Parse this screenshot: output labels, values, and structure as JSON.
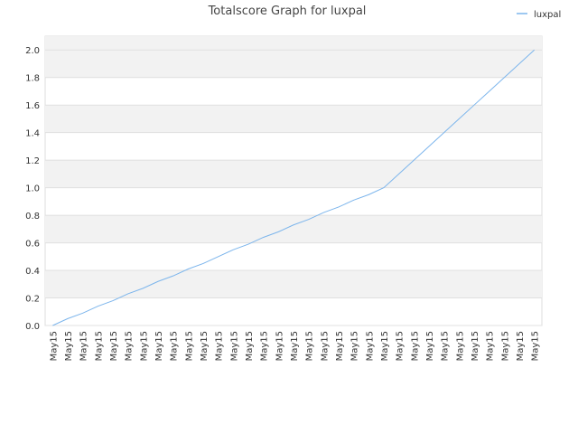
{
  "chart_data": {
    "type": "line",
    "title": "Totalscore Graph for luxpal",
    "categories": [
      "May15",
      "May15",
      "May15",
      "May15",
      "May15",
      "May15",
      "May15",
      "May15",
      "May15",
      "May15",
      "May15",
      "May15",
      "May15",
      "May15",
      "May15",
      "May15",
      "May15",
      "May15",
      "May15",
      "May15",
      "May15",
      "May15",
      "May15",
      "May15",
      "May15",
      "May15",
      "May15",
      "May15",
      "May15",
      "May15",
      "May15",
      "May15",
      "May15"
    ],
    "series": [
      {
        "name": "luxpal",
        "color": "#7cb5ec",
        "values": [
          0,
          0.05,
          0.09,
          0.14,
          0.18,
          0.23,
          0.27,
          0.32,
          0.36,
          0.41,
          0.45,
          0.5,
          0.55,
          0.59,
          0.64,
          0.68,
          0.73,
          0.77,
          0.82,
          0.86,
          0.91,
          0.95,
          1,
          1.1,
          1.2,
          1.3,
          1.4,
          1.5,
          1.6,
          1.7,
          1.8,
          1.9,
          2
        ]
      }
    ],
    "ylim": [
      0,
      2.1
    ],
    "yticks": [
      {
        "value": 0,
        "label": "0.0"
      },
      {
        "value": 0.2,
        "label": "0.2"
      },
      {
        "value": 0.4,
        "label": "0.4"
      },
      {
        "value": 0.6,
        "label": "0.6"
      },
      {
        "value": 0.8,
        "label": "0.8"
      },
      {
        "value": 1,
        "label": "1.0"
      },
      {
        "value": 1.2,
        "label": "1.2"
      },
      {
        "value": 1.4,
        "label": "1.4"
      },
      {
        "value": 1.6,
        "label": "1.6"
      },
      {
        "value": 1.8,
        "label": "1.8"
      },
      {
        "value": 2,
        "label": "2.0"
      }
    ],
    "grid": true,
    "legend": "top-right"
  }
}
